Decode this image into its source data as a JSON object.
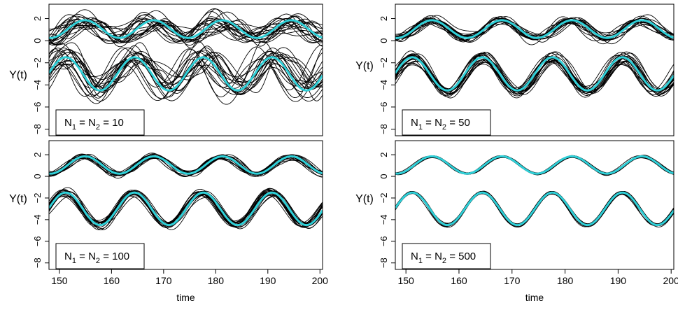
{
  "colors": {
    "background": "#ffffff",
    "frame": "#000000",
    "replicate_line": "#000000",
    "true_line": "#2fd0d8"
  },
  "chart_data": [
    {
      "type": "line",
      "legend": {
        "label": "N",
        "sub1": "1",
        "eq1": " = N",
        "sub2": "2",
        "eq2": " = 10",
        "position": "bottom-left"
      },
      "xlabel": "",
      "ylabel": "Y(t)",
      "xlim": [
        148,
        200.5
      ],
      "ylim": [
        -8.6,
        3.3
      ],
      "xticks": [],
      "yticks": [
        2,
        0,
        -2,
        -4,
        -6,
        -8
      ],
      "true_curves": [
        {
          "series": "Y1",
          "center": 1.05,
          "amplitude": 0.8,
          "period": 13.2,
          "phase": 154.9
        },
        {
          "series": "Y2",
          "center": -3.0,
          "amplitude": 1.5,
          "period": 13.2,
          "phase": 151.2
        }
      ],
      "replicates": {
        "count": 20,
        "noise_level": 1.0
      }
    },
    {
      "type": "line",
      "legend": {
        "label": "N",
        "sub1": "1",
        "eq1": " = N",
        "sub2": "2",
        "eq2": " = 50",
        "position": "bottom-left"
      },
      "xlabel": "",
      "ylabel": "Y(t)",
      "xlim": [
        148,
        200.5
      ],
      "ylim": [
        -8.6,
        3.3
      ],
      "xticks": [],
      "yticks": [
        2,
        0,
        -2,
        -4,
        -6,
        -8
      ],
      "true_curves": [
        {
          "series": "Y1",
          "center": 1.05,
          "amplitude": 0.8,
          "period": 13.2,
          "phase": 154.9
        },
        {
          "series": "Y2",
          "center": -3.0,
          "amplitude": 1.5,
          "period": 13.2,
          "phase": 151.2
        }
      ],
      "replicates": {
        "count": 20,
        "noise_level": 0.45
      }
    },
    {
      "type": "line",
      "legend": {
        "label": "N",
        "sub1": "1",
        "eq1": " = N",
        "sub2": "2",
        "eq2": " = 100",
        "position": "bottom-left"
      },
      "xlabel": "time",
      "ylabel": "Y(t)",
      "xlim": [
        148,
        200.5
      ],
      "ylim": [
        -8.6,
        3.3
      ],
      "xticks": [
        150,
        160,
        170,
        180,
        190,
        200
      ],
      "yticks": [
        2,
        0,
        -2,
        -4,
        -6,
        -8
      ],
      "true_curves": [
        {
          "series": "Y1",
          "center": 1.05,
          "amplitude": 0.8,
          "period": 13.2,
          "phase": 154.9
        },
        {
          "series": "Y2",
          "center": -3.0,
          "amplitude": 1.5,
          "period": 13.2,
          "phase": 151.2
        }
      ],
      "replicates": {
        "count": 20,
        "noise_level": 0.3
      }
    },
    {
      "type": "line",
      "legend": {
        "label": "N",
        "sub1": "1",
        "eq1": " = N",
        "sub2": "2",
        "eq2": " = 500",
        "position": "bottom-left"
      },
      "xlabel": "time",
      "ylabel": "Y(t)",
      "xlim": [
        148,
        200.5
      ],
      "ylim": [
        -8.6,
        3.3
      ],
      "xticks": [
        150,
        160,
        170,
        180,
        190,
        200
      ],
      "yticks": [
        2,
        0,
        -2,
        -4,
        -6,
        -8
      ],
      "true_curves": [
        {
          "series": "Y1",
          "center": 1.05,
          "amplitude": 0.8,
          "period": 13.2,
          "phase": 154.9
        },
        {
          "series": "Y2",
          "center": -3.0,
          "amplitude": 1.5,
          "period": 13.2,
          "phase": 151.2
        }
      ],
      "replicates": {
        "count": 20,
        "noise_level": 0.12
      }
    }
  ]
}
